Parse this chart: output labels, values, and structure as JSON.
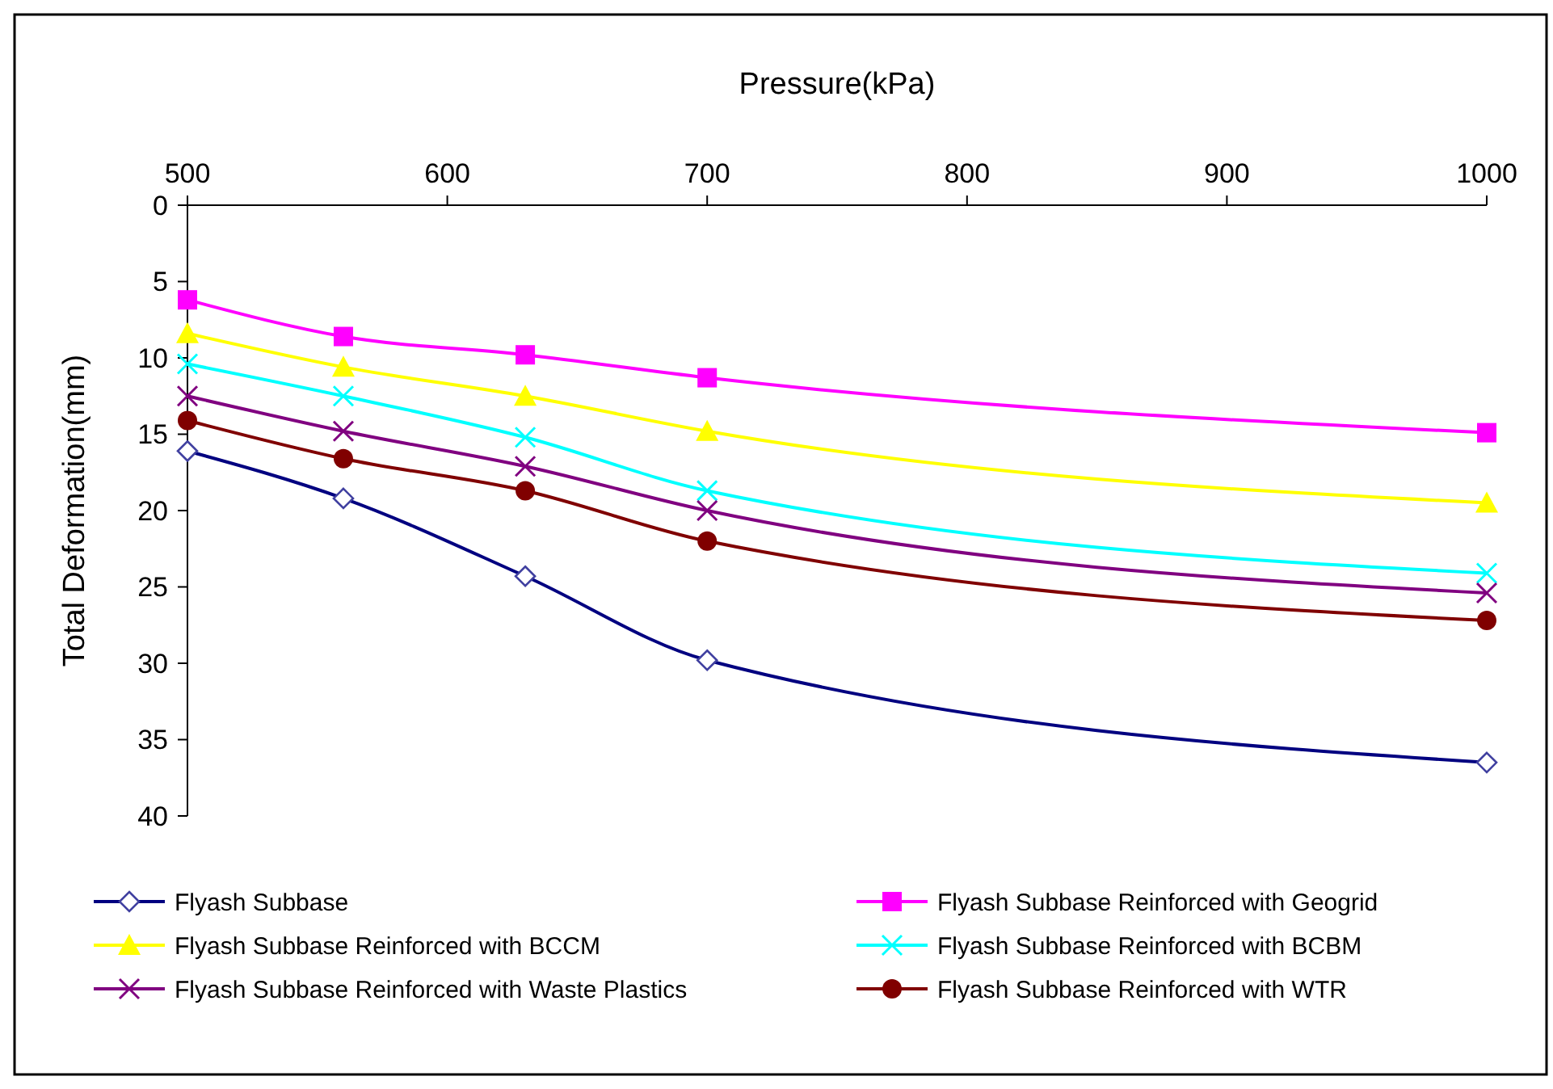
{
  "chart_data": {
    "type": "line",
    "xlabel": "Pressure(kPa)",
    "ylabel": "Total Deformation(mm)",
    "x": [
      500,
      560,
      630,
      700,
      1000
    ],
    "xlim": [
      500,
      1000
    ],
    "xticks": [
      500,
      600,
      700,
      800,
      900,
      1000
    ],
    "ylim": [
      40,
      0
    ],
    "yticks": [
      0,
      5,
      10,
      15,
      20,
      25,
      30,
      35,
      40
    ],
    "grid": false,
    "legend": "bottom",
    "series": [
      {
        "name": "Flyash Subbase",
        "color": "#000080",
        "marker": "diamond",
        "values": [
          16.1,
          19.2,
          24.3,
          29.8,
          36.5
        ]
      },
      {
        "name": "Flyash Subbase Reinforced with Geogrid",
        "color": "#ff00ff",
        "marker": "square",
        "values": [
          6.2,
          8.6,
          9.8,
          11.3,
          14.9
        ]
      },
      {
        "name": "Flyash Subbase Reinforced with BCCM",
        "color": "#ffff00",
        "marker": "triangle",
        "values": [
          8.4,
          10.6,
          12.5,
          14.8,
          19.5
        ]
      },
      {
        "name": "Flyash Subbase Reinforced with BCBM",
        "color": "#00ffff",
        "marker": "cross",
        "values": [
          10.4,
          12.5,
          15.2,
          18.7,
          24.1
        ]
      },
      {
        "name": "Flyash Subbase Reinforced with Waste Plastics",
        "color": "#800080",
        "marker": "cross",
        "values": [
          12.5,
          14.8,
          17.1,
          20.0,
          25.4
        ]
      },
      {
        "name": "Flyash Subbase Reinforced with WTR",
        "color": "#800000",
        "marker": "circle",
        "values": [
          14.1,
          16.6,
          18.7,
          22.0,
          27.2
        ]
      }
    ]
  }
}
